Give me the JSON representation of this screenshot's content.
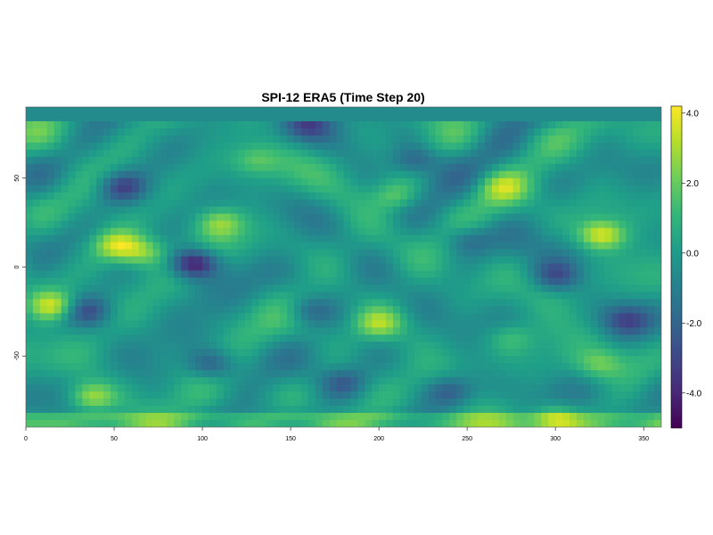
{
  "chart_data": {
    "type": "heatmap",
    "title": "SPI-12 ERA5 (Time Step 20)",
    "xlabel": "",
    "ylabel": "",
    "xlim": [
      0,
      360
    ],
    "ylim": [
      -90,
      90
    ],
    "x_ticks": [
      0,
      50,
      100,
      150,
      200,
      250,
      300,
      350
    ],
    "x_tick_labels": [
      "0",
      "50",
      "100",
      "150",
      "200",
      "250",
      "300",
      "350"
    ],
    "y_ticks": [
      50,
      0,
      -50
    ],
    "y_tick_labels": [
      "50",
      "0",
      "-50"
    ],
    "colorbar": {
      "min": -5.0,
      "max": 4.2,
      "ticks": [
        4.0,
        2.0,
        0.0,
        -2.0,
        -4.0
      ],
      "tick_labels": [
        "4.0",
        "2.0",
        "0.0",
        "-2.0",
        "-4.0"
      ],
      "colormap": "viridis",
      "colors": [
        "#440154",
        "#482878",
        "#3e4989",
        "#31688e",
        "#26828e",
        "#1f9e89",
        "#35b779",
        "#6ece58",
        "#b5de2b",
        "#fde725"
      ]
    },
    "grid": false,
    "features": [
      {
        "lon": 95,
        "lat": 2,
        "value": -4.8
      },
      {
        "lon": 52,
        "lat": 12,
        "value": 3.2
      },
      {
        "lon": 67,
        "lat": 8,
        "value": 2.4
      },
      {
        "lon": 15,
        "lat": -22,
        "value": 3.5
      },
      {
        "lon": 37,
        "lat": -73,
        "value": 3.0
      },
      {
        "lon": 326,
        "lat": 18,
        "value": 3.8
      },
      {
        "lon": 300,
        "lat": -85,
        "value": 2.8
      },
      {
        "lon": 200,
        "lat": -32,
        "value": 2.6
      },
      {
        "lon": 210,
        "lat": 40,
        "value": 2.0
      },
      {
        "lon": 55,
        "lat": 45,
        "value": -2.6
      },
      {
        "lon": 220,
        "lat": 60,
        "value": -2.4
      },
      {
        "lon": 35,
        "lat": -25,
        "value": -2.4
      },
      {
        "lon": 160,
        "lat": -25,
        "value": -2.0
      },
      {
        "lon": 340,
        "lat": -30,
        "value": -2.2
      },
      {
        "lon": 300,
        "lat": -5,
        "value": -2.4
      },
      {
        "lon": 105,
        "lat": -55,
        "value": -2.4
      },
      {
        "lon": 250,
        "lat": 15,
        "value": -1.8
      },
      {
        "lon": 180,
        "lat": -65,
        "value": -2.0
      },
      {
        "lon": 270,
        "lat": 45,
        "value": 2.0
      },
      {
        "lon": 130,
        "lat": 60,
        "value": 1.6
      },
      {
        "lon": 160,
        "lat": 80,
        "value": -2.2
      },
      {
        "lon": 325,
        "lat": -55,
        "value": 1.8
      },
      {
        "lon": 110,
        "lat": 25,
        "value": 2.4
      },
      {
        "lon": 275,
        "lat": -40,
        "value": 1.4
      },
      {
        "lon": 240,
        "lat": -70,
        "value": -2.2
      }
    ]
  }
}
